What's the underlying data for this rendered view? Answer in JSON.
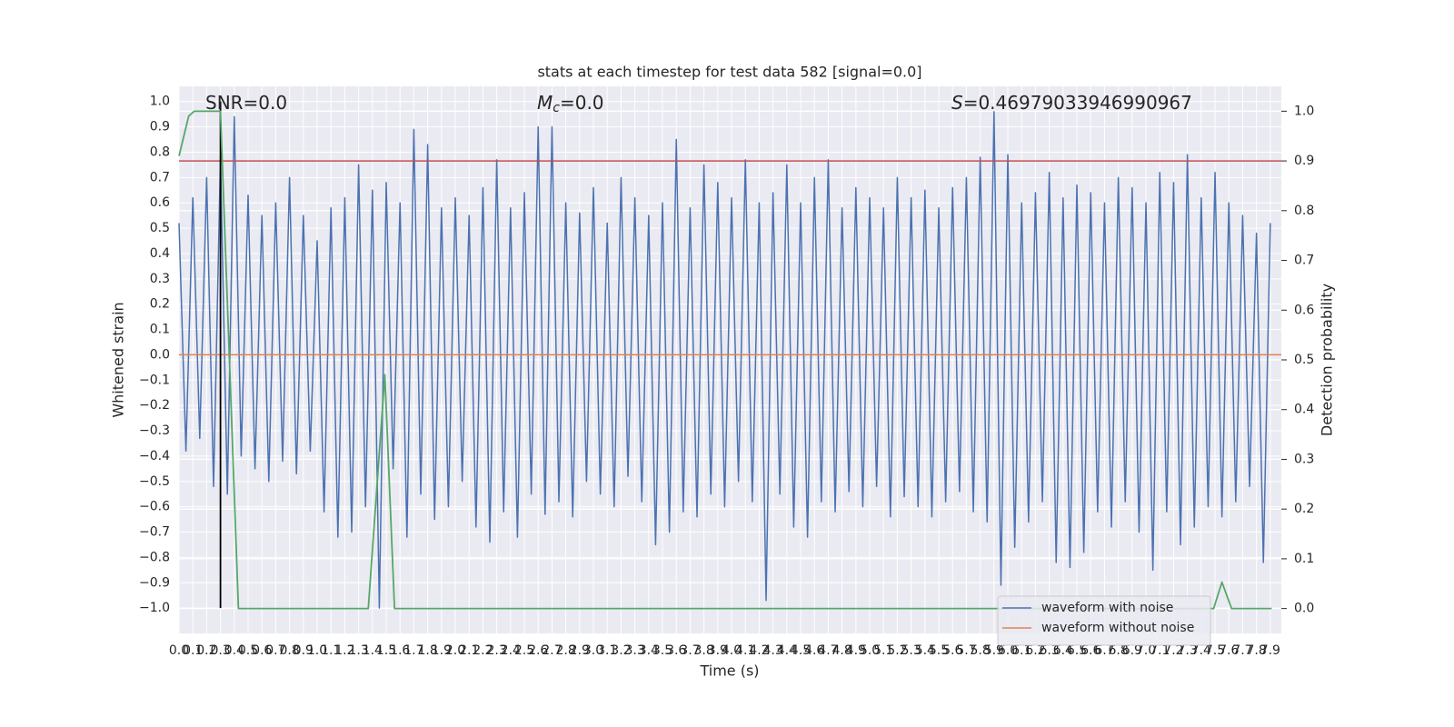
{
  "chart_data": {
    "type": "line",
    "title": "stats at each timestep for test data 582 [signal=0.0]",
    "xlabel": "Time (s)",
    "ylabel": "Whitened strain",
    "y2label": "Detection probability",
    "annotations": [
      {
        "text": "SNR=0.0"
      },
      {
        "italic": "M",
        "sub": "c",
        "text": "=0.0"
      },
      {
        "italic": "S",
        "text": "=0.46979033946990967"
      }
    ],
    "xlim": [
      0,
      7.98
    ],
    "ylim": [
      -1.1,
      1.06
    ],
    "y2lim": [
      -0.05,
      1.05
    ],
    "grid": true,
    "legend": "lower right",
    "xticks": [
      {
        "value": 0,
        "label": "0.0"
      },
      0.1,
      0.2,
      0.3,
      0.4,
      0.5,
      0.6,
      0.7,
      0.8,
      0.9,
      {
        "value": 1,
        "label": "1.0"
      },
      1.1,
      1.2,
      1.3,
      1.4,
      1.5,
      1.6,
      1.7,
      1.8,
      1.9,
      {
        "value": 2,
        "label": "2.0"
      },
      2.1,
      2.2,
      2.3,
      2.4,
      2.5,
      2.6,
      2.7,
      2.8,
      2.9,
      {
        "value": 3,
        "label": "3.0"
      },
      3.1,
      3.2,
      3.3,
      3.4,
      3.5,
      3.6,
      3.7,
      3.8,
      3.9,
      {
        "value": 4,
        "label": "4.0"
      },
      4.1,
      4.2,
      4.3,
      4.4,
      4.5,
      4.6,
      4.7,
      4.8,
      4.9,
      {
        "value": 5,
        "label": "5.0"
      },
      5.1,
      5.2,
      5.3,
      5.4,
      5.5,
      5.6,
      5.7,
      5.8,
      5.9,
      {
        "value": 6,
        "label": "6.0"
      },
      6.1,
      6.2,
      6.3,
      6.4,
      6.5,
      6.6,
      6.7,
      6.8,
      6.9,
      {
        "value": 7,
        "label": "7.0"
      },
      7.1,
      7.2,
      7.3,
      7.4,
      7.5,
      7.6,
      7.7,
      7.8,
      7.9
    ],
    "yticks": [
      {
        "value": -1,
        "label": "−1.0"
      },
      {
        "value": -0.9,
        "label": "−0.9"
      },
      {
        "value": -0.8,
        "label": "−0.8"
      },
      {
        "value": -0.7,
        "label": "−0.7"
      },
      {
        "value": -0.6,
        "label": "−0.6"
      },
      {
        "value": -0.5,
        "label": "−0.5"
      },
      {
        "value": -0.4,
        "label": "−0.4"
      },
      {
        "value": -0.3,
        "label": "−0.3"
      },
      {
        "value": -0.2,
        "label": "−0.2"
      },
      {
        "value": -0.1,
        "label": "−0.1"
      },
      {
        "value": 0,
        "label": "0.0"
      },
      0.1,
      0.2,
      0.3,
      0.4,
      0.5,
      0.6,
      0.7,
      0.8,
      0.9,
      {
        "value": 1,
        "label": "1.0"
      }
    ],
    "y2ticks": [
      {
        "value": 0,
        "label": "0.0"
      },
      0.1,
      0.2,
      0.3,
      0.4,
      0.5,
      0.6,
      0.7,
      0.8,
      0.9,
      {
        "value": 1,
        "label": "1.0"
      }
    ],
    "series": [
      {
        "name": "waveform with noise",
        "color": "#4c72b0",
        "x": [
          0,
          0.05,
          0.1,
          0.15,
          0.2,
          0.25,
          0.3,
          0.35,
          0.4,
          0.45,
          0.5,
          0.55,
          0.6,
          0.65,
          0.7,
          0.75,
          0.8,
          0.85,
          0.9,
          0.95,
          1,
          1.05,
          1.1,
          1.15,
          1.2,
          1.25,
          1.3,
          1.35,
          1.4,
          1.45,
          1.5,
          1.55,
          1.6,
          1.65,
          1.7,
          1.75,
          1.8,
          1.85,
          1.9,
          1.95,
          2,
          2.05,
          2.1,
          2.15,
          2.2,
          2.25,
          2.3,
          2.35,
          2.4,
          2.45,
          2.5,
          2.55,
          2.6,
          2.65,
          2.7,
          2.75,
          2.8,
          2.85,
          2.9,
          2.95,
          3,
          3.05,
          3.1,
          3.15,
          3.2,
          3.25,
          3.3,
          3.35,
          3.4,
          3.45,
          3.5,
          3.55,
          3.6,
          3.65,
          3.7,
          3.75,
          3.8,
          3.85,
          3.9,
          3.95,
          4,
          4.05,
          4.1,
          4.15,
          4.2,
          4.25,
          4.3,
          4.35,
          4.4,
          4.45,
          4.5,
          4.55,
          4.6,
          4.65,
          4.7,
          4.75,
          4.8,
          4.85,
          4.9,
          4.95,
          5,
          5.05,
          5.1,
          5.15,
          5.2,
          5.25,
          5.3,
          5.35,
          5.4,
          5.45,
          5.5,
          5.55,
          5.6,
          5.65,
          5.7,
          5.75,
          5.8,
          5.85,
          5.9,
          5.95,
          6,
          6.05,
          6.1,
          6.15,
          6.2,
          6.25,
          6.3,
          6.35,
          6.4,
          6.45,
          6.5,
          6.55,
          6.6,
          6.65,
          6.7,
          6.75,
          6.8,
          6.85,
          6.9,
          6.95,
          7,
          7.05,
          7.1,
          7.15,
          7.2,
          7.25,
          7.3,
          7.35,
          7.4,
          7.45,
          7.5,
          7.55,
          7.6,
          7.65,
          7.7,
          7.75,
          7.8,
          7.85,
          7.9
        ],
        "values": [
          0.52,
          -0.38,
          0.62,
          -0.33,
          0.7,
          -0.52,
          0.78,
          -0.55,
          0.94,
          -0.4,
          0.63,
          -0.45,
          0.55,
          -0.5,
          0.6,
          -0.42,
          0.7,
          -0.47,
          0.55,
          -0.38,
          0.45,
          -0.62,
          0.58,
          -0.72,
          0.62,
          -0.7,
          0.75,
          -0.6,
          0.65,
          -1.0,
          0.68,
          -0.45,
          0.6,
          -0.72,
          0.89,
          -0.55,
          0.83,
          -0.65,
          0.58,
          -0.6,
          0.62,
          -0.5,
          0.55,
          -0.68,
          0.66,
          -0.74,
          0.77,
          -0.62,
          0.58,
          -0.72,
          0.64,
          -0.55,
          0.9,
          -0.63,
          0.9,
          -0.58,
          0.6,
          -0.64,
          0.56,
          -0.5,
          0.66,
          -0.55,
          0.52,
          -0.6,
          0.7,
          -0.48,
          0.62,
          -0.58,
          0.55,
          -0.75,
          0.6,
          -0.7,
          0.85,
          -0.62,
          0.58,
          -0.64,
          0.75,
          -0.55,
          0.68,
          -0.6,
          0.62,
          -0.5,
          0.77,
          -0.58,
          0.6,
          -0.97,
          0.64,
          -0.55,
          0.75,
          -0.68,
          0.6,
          -0.72,
          0.7,
          -0.58,
          0.77,
          -0.62,
          0.58,
          -0.54,
          0.66,
          -0.6,
          0.62,
          -0.52,
          0.58,
          -0.64,
          0.7,
          -0.56,
          0.62,
          -0.6,
          0.65,
          -0.64,
          0.58,
          -0.58,
          0.66,
          -0.54,
          0.7,
          -0.62,
          0.78,
          -0.66,
          0.96,
          -0.91,
          0.79,
          -0.76,
          0.6,
          -0.66,
          0.64,
          -0.58,
          0.72,
          -0.82,
          0.62,
          -0.84,
          0.67,
          -0.78,
          0.64,
          -0.62,
          0.6,
          -0.68,
          0.7,
          -0.58,
          0.66,
          -0.7,
          0.6,
          -0.85,
          0.72,
          -0.62,
          0.68,
          -0.75,
          0.79,
          -0.68,
          0.62,
          -0.6,
          0.72,
          -0.64,
          0.6,
          -0.58,
          0.55,
          -0.52,
          0.48,
          -0.82,
          0.52
        ]
      },
      {
        "name": "waveform without noise",
        "color": "#dd8452",
        "x": [
          0,
          7.98
        ],
        "values": [
          0,
          0
        ]
      },
      {
        "color": "#55a868",
        "axis": "y2",
        "x": [
          0,
          0.07,
          0.11,
          0.3,
          0.43,
          1.37,
          1.49,
          1.56,
          7.49,
          7.55,
          7.62,
          7.91
        ],
        "values": [
          0.91,
          0.99,
          1.0,
          1.0,
          0,
          0,
          0.47,
          0,
          0,
          0.053,
          0,
          0
        ]
      }
    ],
    "hlines": [
      {
        "y": 0.9,
        "axis": "y2",
        "color": "#c44e52"
      }
    ],
    "vlines": [
      {
        "x": 0.3,
        "ymin": -1.0,
        "ymax": 1.0,
        "color": "#000000"
      }
    ]
  }
}
